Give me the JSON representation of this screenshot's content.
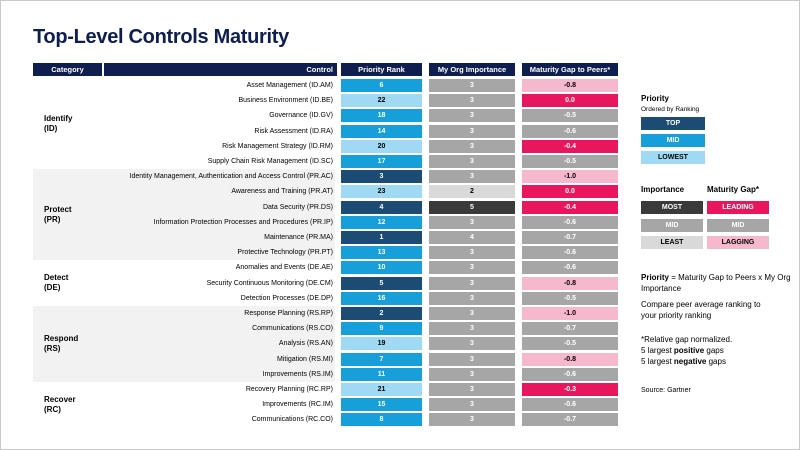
{
  "title": "Top-Level Controls Maturity",
  "headers": {
    "category": "Category",
    "control": "Control",
    "priority_rank": "Priority Rank",
    "importance": "My Org Importance",
    "gap": "Maturity Gap to Peers*"
  },
  "colors": {
    "header_bg": "#0e1f4f",
    "rank_top": "#1c4b73",
    "rank_mid": "#179fd9",
    "rank_lowest": "#9fd9f4",
    "imp_most": "#3a3a3a",
    "imp_mid": "#a6a6a6",
    "imp_least": "#d9d9d9",
    "gap_leading": "#e8175d",
    "gap_mid": "#a6a6a6",
    "gap_lagging": "#f6b8cc"
  },
  "chart_data": {
    "type": "table",
    "groups": [
      {
        "label": "Identify\n(ID)",
        "rows": [
          {
            "control": "Asset Management (ID.AM)",
            "rank": 6,
            "rank_level": "mid",
            "importance": 3,
            "imp_level": "mid",
            "gap": "-0.8",
            "gap_level": "lagging"
          },
          {
            "control": "Business Environment (ID.BE)",
            "rank": 22,
            "rank_level": "lowest",
            "importance": 3,
            "imp_level": "mid",
            "gap": "0.0",
            "gap_level": "leading"
          },
          {
            "control": "Governance (ID.GV)",
            "rank": 18,
            "rank_level": "mid",
            "importance": 3,
            "imp_level": "mid",
            "gap": "-0.5",
            "gap_level": "mid"
          },
          {
            "control": "Risk Assessment (ID.RA)",
            "rank": 14,
            "rank_level": "mid",
            "importance": 3,
            "imp_level": "mid",
            "gap": "-0.6",
            "gap_level": "mid"
          },
          {
            "control": "Risk Management Strategy (ID.RM)",
            "rank": 20,
            "rank_level": "lowest",
            "importance": 3,
            "imp_level": "mid",
            "gap": "-0.4",
            "gap_level": "leading"
          },
          {
            "control": "Supply Chain Risk Management (ID.SC)",
            "rank": 17,
            "rank_level": "mid",
            "importance": 3,
            "imp_level": "mid",
            "gap": "-0.5",
            "gap_level": "mid"
          }
        ]
      },
      {
        "label": "Protect\n(PR)",
        "rows": [
          {
            "control": "Identity Management, Authentication and Access Control (PR.AC)",
            "rank": 3,
            "rank_level": "top",
            "importance": 3,
            "imp_level": "mid",
            "gap": "-1.0",
            "gap_level": "lagging"
          },
          {
            "control": "Awareness and Training (PR.AT)",
            "rank": 23,
            "rank_level": "lowest",
            "importance": 2,
            "imp_level": "least",
            "gap": "0.0",
            "gap_level": "leading"
          },
          {
            "control": "Data Security (PR.DS)",
            "rank": 4,
            "rank_level": "top",
            "importance": 5,
            "imp_level": "most",
            "gap": "-0.4",
            "gap_level": "leading"
          },
          {
            "control": "Information Protection Processes and Procedures (PR.IP)",
            "rank": 12,
            "rank_level": "mid",
            "importance": 3,
            "imp_level": "mid",
            "gap": "-0.6",
            "gap_level": "mid"
          },
          {
            "control": "Maintenance (PR.MA)",
            "rank": 1,
            "rank_level": "top",
            "importance": 4,
            "imp_level": "mid",
            "gap": "-0.7",
            "gap_level": "mid"
          },
          {
            "control": "Protective Technology (PR.PT)",
            "rank": 13,
            "rank_level": "mid",
            "importance": 3,
            "imp_level": "mid",
            "gap": "-0.6",
            "gap_level": "mid"
          }
        ]
      },
      {
        "label": "Detect\n(DE)",
        "rows": [
          {
            "control": "Anomalies and Events (DE.AE)",
            "rank": 10,
            "rank_level": "mid",
            "importance": 3,
            "imp_level": "mid",
            "gap": "-0.6",
            "gap_level": "mid"
          },
          {
            "control": "Security Continuous Monitoring (DE.CM)",
            "rank": 5,
            "rank_level": "top",
            "importance": 3,
            "imp_level": "mid",
            "gap": "-0.8",
            "gap_level": "lagging"
          },
          {
            "control": "Detection Processes (DE.DP)",
            "rank": 16,
            "rank_level": "mid",
            "importance": 3,
            "imp_level": "mid",
            "gap": "-0.5",
            "gap_level": "mid"
          }
        ]
      },
      {
        "label": "Respond\n(RS)",
        "rows": [
          {
            "control": "Response Planning (RS.RP)",
            "rank": 2,
            "rank_level": "top",
            "importance": 3,
            "imp_level": "mid",
            "gap": "-1.0",
            "gap_level": "lagging"
          },
          {
            "control": "Communications (RS.CO)",
            "rank": 9,
            "rank_level": "mid",
            "importance": 3,
            "imp_level": "mid",
            "gap": "-0.7",
            "gap_level": "mid"
          },
          {
            "control": "Analysis (RS.AN)",
            "rank": 19,
            "rank_level": "lowest",
            "importance": 3,
            "imp_level": "mid",
            "gap": "-0.5",
            "gap_level": "mid"
          },
          {
            "control": "Mitigation (RS.MI)",
            "rank": 7,
            "rank_level": "mid",
            "importance": 3,
            "imp_level": "mid",
            "gap": "-0.8",
            "gap_level": "lagging"
          },
          {
            "control": "Improvements (RS.IM)",
            "rank": 11,
            "rank_level": "mid",
            "importance": 3,
            "imp_level": "mid",
            "gap": "-0.6",
            "gap_level": "mid"
          }
        ]
      },
      {
        "label": "Recover\n(RC)",
        "rows": [
          {
            "control": "Recovery Planning (RC.RP)",
            "rank": 21,
            "rank_level": "lowest",
            "importance": 3,
            "imp_level": "mid",
            "gap": "-0.3",
            "gap_level": "leading"
          },
          {
            "control": "Improvements (RC.IM)",
            "rank": 15,
            "rank_level": "mid",
            "importance": 3,
            "imp_level": "mid",
            "gap": "-0.6",
            "gap_level": "mid"
          },
          {
            "control": "Communications (RC.CO)",
            "rank": 8,
            "rank_level": "mid",
            "importance": 3,
            "imp_level": "mid",
            "gap": "-0.7",
            "gap_level": "mid"
          }
        ]
      }
    ]
  },
  "legend": {
    "priority_title": "Priority",
    "priority_sub": "Ordered by Ranking",
    "priority_items": [
      "TOP",
      "MID",
      "LOWEST"
    ],
    "importance_title": "Importance",
    "gap_title": "Maturity Gap*",
    "importance_items": [
      "MOST",
      "MID",
      "LEAST"
    ],
    "gap_items": [
      "LEADING",
      "MID",
      "LAGGING"
    ]
  },
  "notes": {
    "formula_bold": "Priority",
    "formula_rest": " = Maturity Gap to Peers x My Org Importance",
    "compare": "Compare peer average ranking to your priority ranking",
    "relative": "*Relative gap normalized.",
    "pos_pre": "5 largest ",
    "pos_bold": "positive",
    "pos_post": " gaps",
    "neg_pre": "5 largest ",
    "neg_bold": "negative",
    "neg_post": " gaps",
    "source": "Source: Gartner"
  }
}
